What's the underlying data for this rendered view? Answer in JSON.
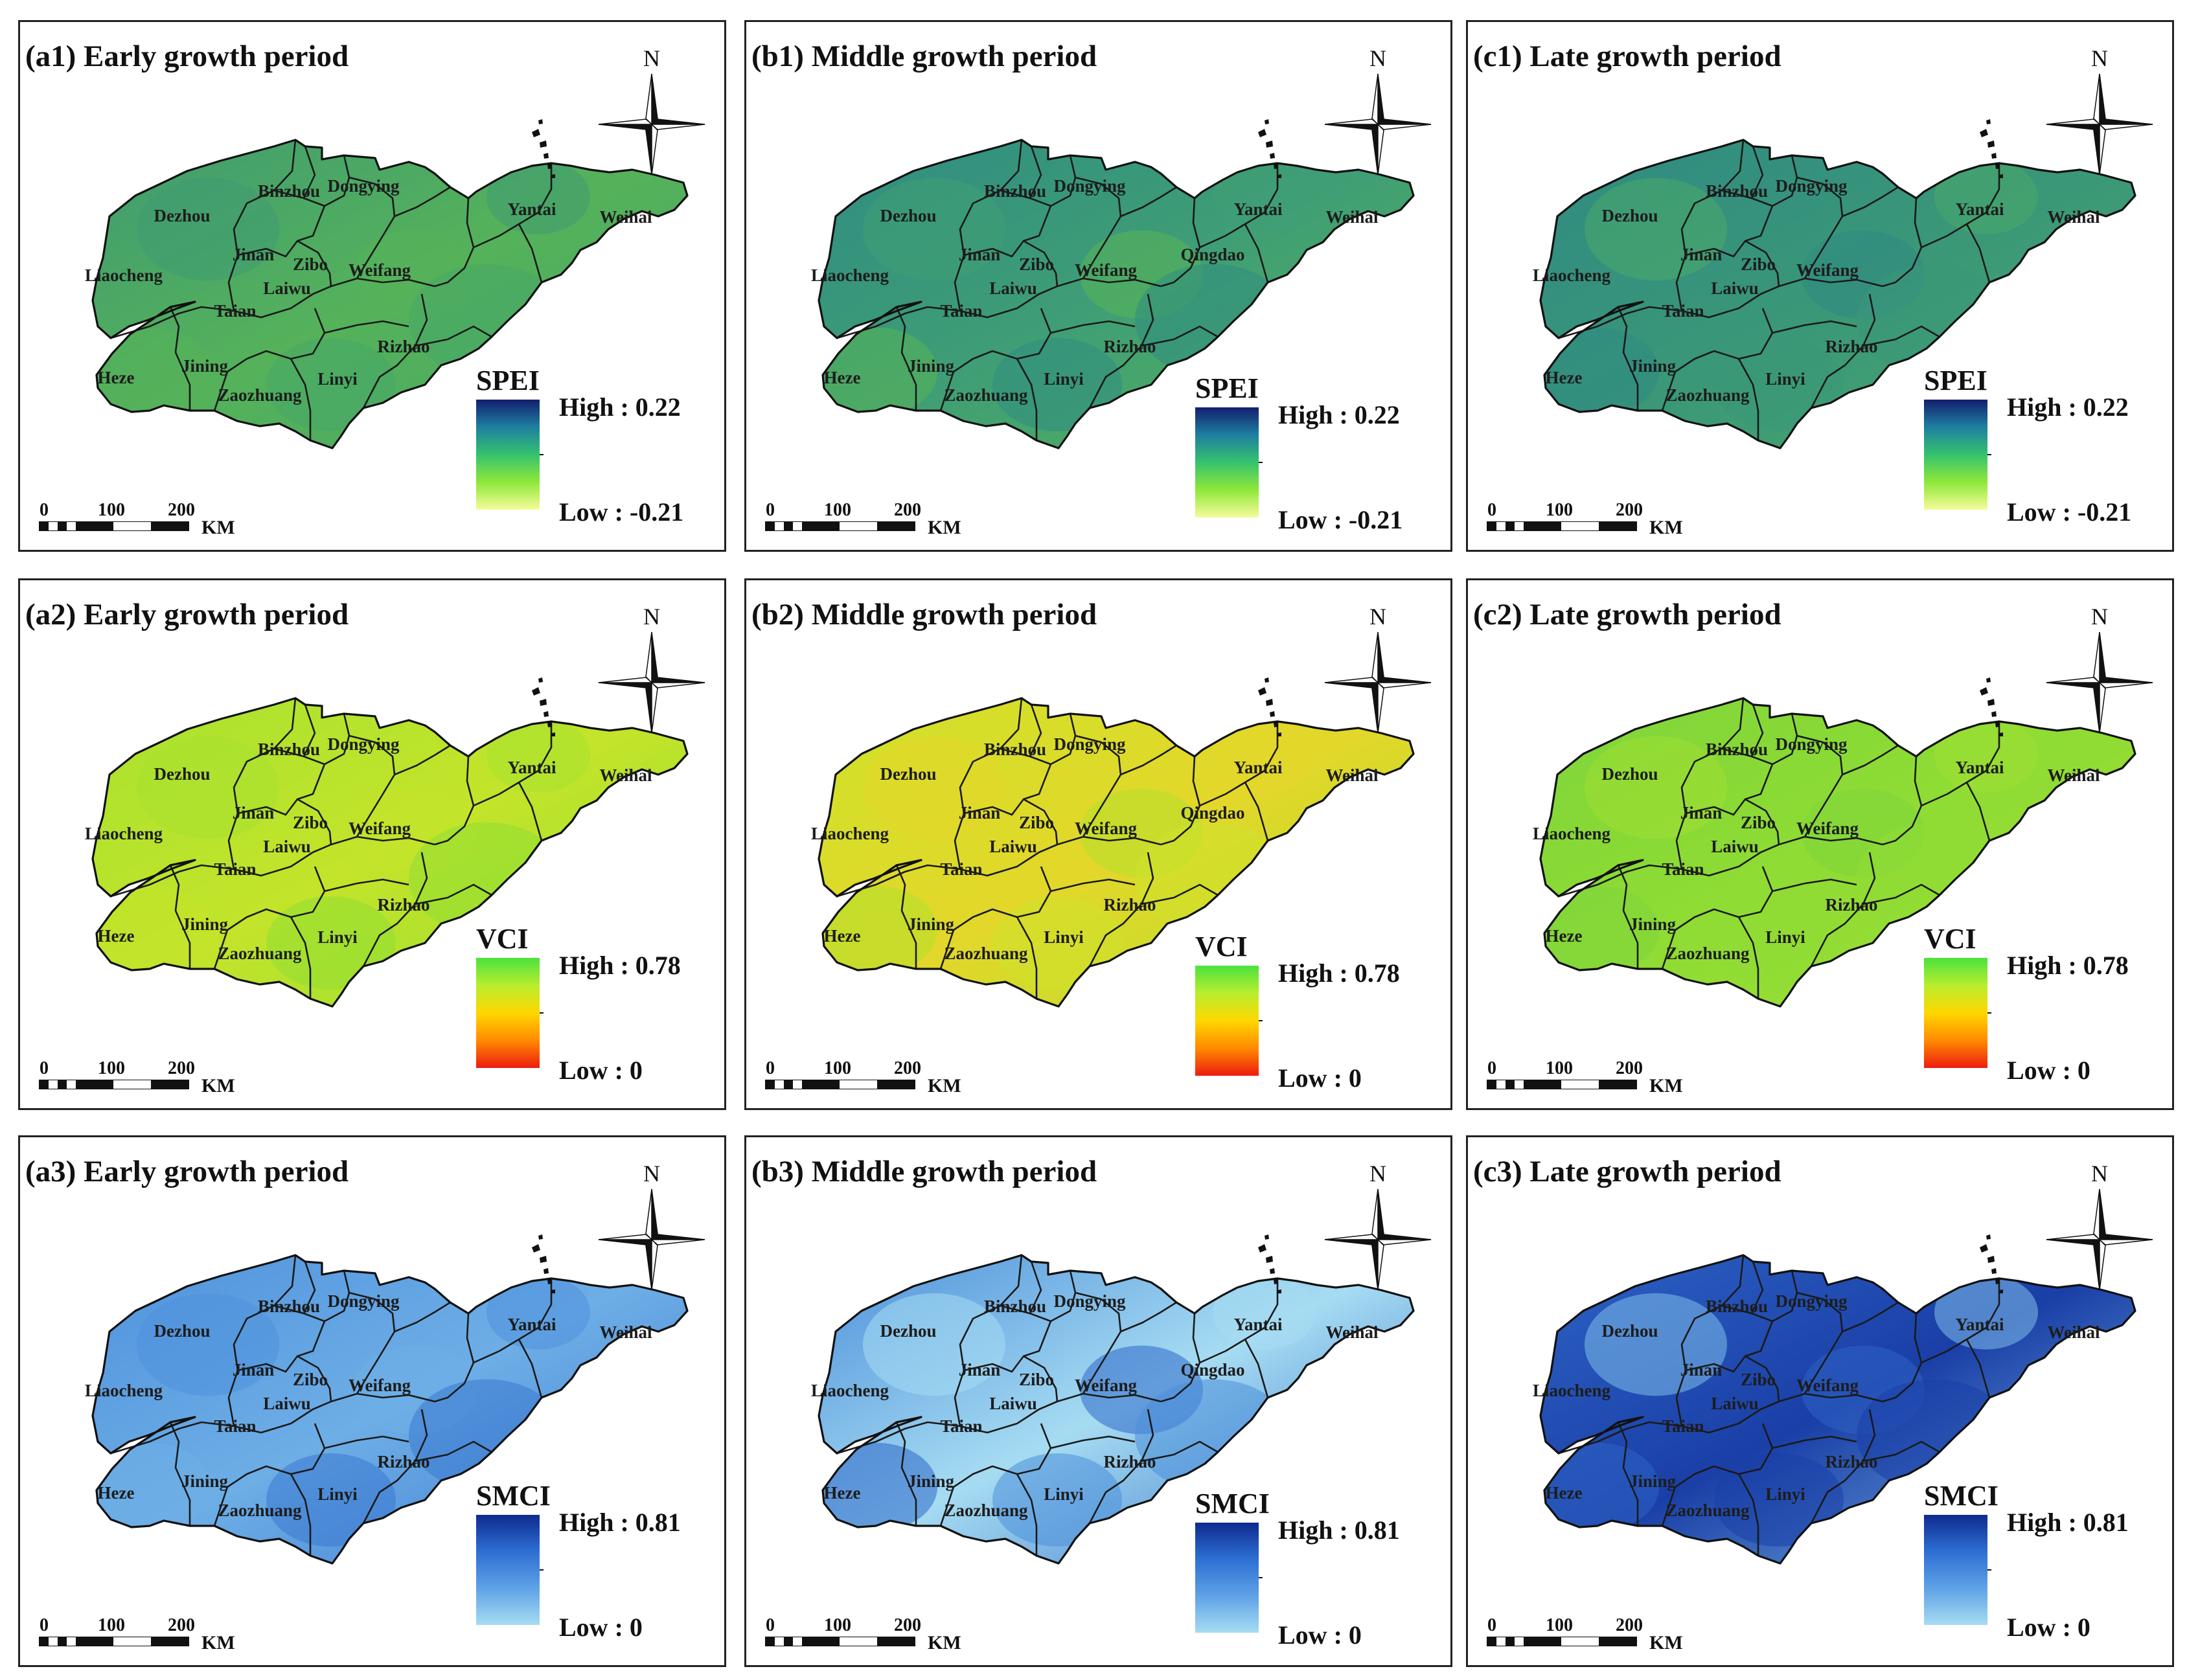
{
  "north_label": "N",
  "scale": {
    "ticks": [
      "0",
      "100",
      "200"
    ],
    "unit": "KM"
  },
  "indices": [
    {
      "name": "SPEI",
      "high": "High : 0.22",
      "low": "Low : -0.21",
      "colors": [
        "#131f6e",
        "#1e7fa0",
        "#35c26e",
        "#8ee83a",
        "#f6fb9a"
      ]
    },
    {
      "name": "VCI",
      "high": "High : 0.78",
      "low": "Low : 0",
      "colors": [
        "#4be23d",
        "#b8ee2e",
        "#ffd700",
        "#ff8a00",
        "#ee1c10"
      ]
    },
    {
      "name": "SMCI",
      "high": "High : 0.81",
      "low": "Low : 0",
      "colors": [
        "#0f2a8e",
        "#2d6fd3",
        "#5fa2e6",
        "#a6dcf2"
      ]
    }
  ],
  "periods": [
    {
      "key": "a",
      "name": "Early growth period"
    },
    {
      "key": "b",
      "name": "Middle growth period"
    },
    {
      "key": "c",
      "name": "Late growth period"
    }
  ],
  "panels": [
    {
      "title": "(a1) Early growth period",
      "index": 0,
      "fill": [
        "#3f9b71",
        "#55b25a",
        "#47a866"
      ]
    },
    {
      "title": "(b1) Middle growth period",
      "index": 0,
      "fill": [
        "#2f8c82",
        "#3f9e75",
        "#58b457"
      ]
    },
    {
      "title": "(c1) Late growth period",
      "index": 0,
      "fill": [
        "#2f8a82",
        "#3a9778",
        "#4aa96a"
      ]
    },
    {
      "title": "(a2) Early growth period",
      "index": 1,
      "fill": [
        "#a8e22f",
        "#c3e42a",
        "#92de33"
      ]
    },
    {
      "title": "(b2) Middle growth period",
      "index": 1,
      "fill": [
        "#cfe22a",
        "#e3d72a",
        "#b4e02c"
      ]
    },
    {
      "title": "(c2) Late growth period",
      "index": 1,
      "fill": [
        "#7fd53a",
        "#8fdc34",
        "#9ede33"
      ]
    },
    {
      "title": "(a3) Early growth period",
      "index": 2,
      "fill": [
        "#4f92dc",
        "#6eaee6",
        "#3a78cf"
      ]
    },
    {
      "title": "(b3) Middle growth period",
      "index": 2,
      "fill": [
        "#4d8fdb",
        "#a6dcf2",
        "#2e68c8"
      ]
    },
    {
      "title": "(c3) Late growth period",
      "index": 2,
      "fill": [
        "#2d62c4",
        "#1a3fa7",
        "#7fbde9"
      ]
    }
  ],
  "cities": [
    "Dezhou",
    "Binzhou",
    "Dongying",
    "Yantai",
    "Weihai",
    "Liaocheng",
    "Jinan",
    "Zibo",
    "Weifang",
    "Qingdao",
    "Laiwu",
    "Taian",
    "Rizhao",
    "Heze",
    "Jining",
    "Linyi",
    "Zaozhuang"
  ],
  "city_fill_index": [
    0,
    2,
    0,
    2,
    1,
    1,
    0,
    0,
    1,
    2,
    0,
    0,
    1,
    1,
    1,
    1,
    1
  ],
  "qingdao_shown_in_columns": [
    1
  ]
}
